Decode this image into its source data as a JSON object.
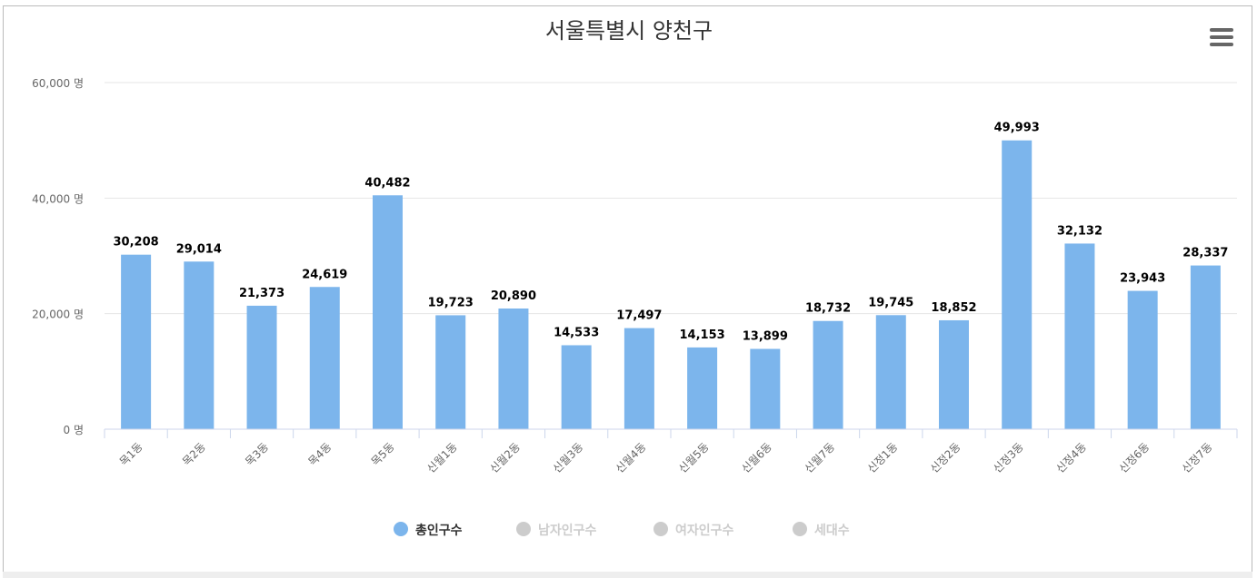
{
  "menu_icon": "hamburger-menu-icon",
  "chart_data": {
    "type": "bar",
    "title": "서울특별시 양천구",
    "categories": [
      "목1동",
      "목2동",
      "목3동",
      "목4동",
      "목5동",
      "신월1동",
      "신월2동",
      "신월3동",
      "신월4동",
      "신월5동",
      "신월6동",
      "신월7동",
      "신정1동",
      "신정2동",
      "신정3동",
      "신정4동",
      "신정6동",
      "신정7동"
    ],
    "series": [
      {
        "name": "총인구수",
        "values": [
          30208,
          29014,
          21373,
          24619,
          40482,
          19723,
          20890,
          14533,
          17497,
          14153,
          13899,
          18732,
          19745,
          18852,
          49993,
          32132,
          23943,
          28337
        ],
        "color": "#7cb5ec",
        "visible": true
      }
    ],
    "data_labels": [
      "30,208",
      "29,014",
      "21,373",
      "24,619",
      "40,482",
      "19,723",
      "20,890",
      "14,533",
      "17,497",
      "14,153",
      "13,899",
      "18,732",
      "19,745",
      "18,852",
      "49,993",
      "32,132",
      "23,943",
      "28,337"
    ],
    "yticks": [
      0,
      20000,
      40000,
      60000
    ],
    "ytick_labels": [
      "0 명",
      "20,000 명",
      "40,000 명",
      "60,000 명"
    ],
    "ylim": [
      0,
      60000
    ],
    "grid": true,
    "legend": {
      "placement": "bottom",
      "items": [
        {
          "label": "총인구수",
          "active": true,
          "color": "#7cb5ec"
        },
        {
          "label": "남자인구수",
          "active": false,
          "color": "#cccccc"
        },
        {
          "label": "여자인구수",
          "active": false,
          "color": "#cccccc"
        },
        {
          "label": "세대수",
          "active": false,
          "color": "#cccccc"
        }
      ]
    }
  }
}
